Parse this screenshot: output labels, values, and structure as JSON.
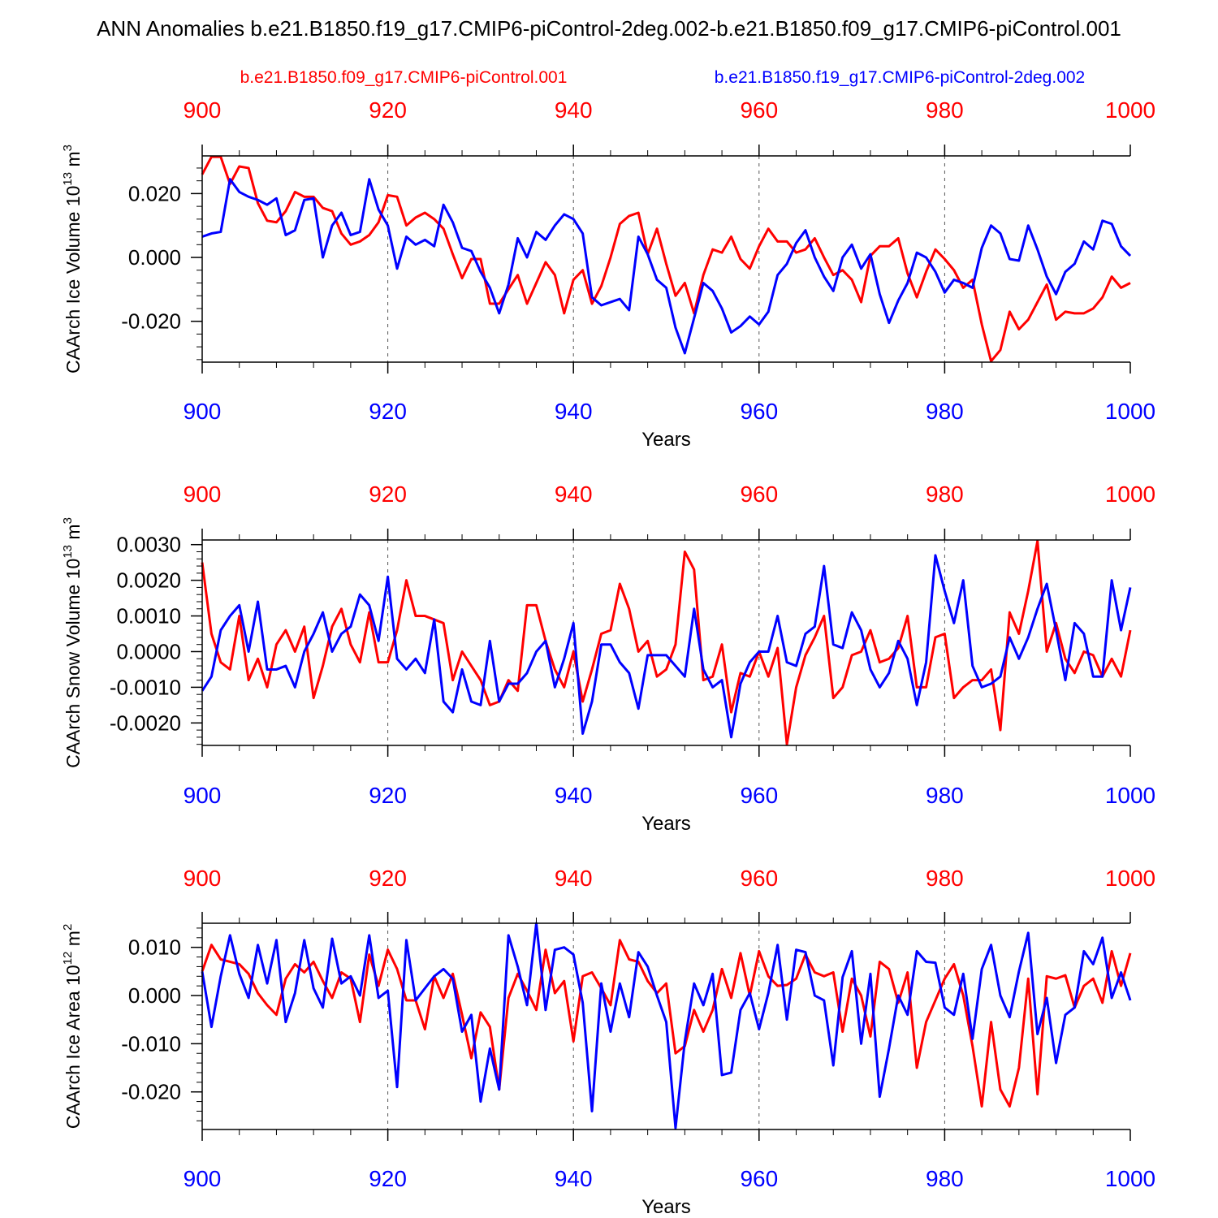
{
  "title": "ANN Anomalies b.e21.B1850.f19_g17.CMIP6-piControl-2deg.002-b.e21.B1850.f09_g17.CMIP6-piControl.001",
  "legend": {
    "red_label": "b.e21.B1850.f09_g17.CMIP6-piControl.001",
    "blue_label": "b.e21.B1850.f19_g17.CMIP6-piControl-2deg.002"
  },
  "colors": {
    "red": "#ff0000",
    "blue": "#0000ff",
    "axis": "#000000",
    "grid": "#555555"
  },
  "chart_data": [
    {
      "type": "line",
      "ylabel": "CAArch Ice Volume 10",
      "ylabel_exp": "13",
      "ylabel_unit": " m",
      "ylabel_unit_exp": "3",
      "xlabel": "Years",
      "xlim": [
        900,
        1000
      ],
      "ylim": [
        -0.0328,
        0.0318
      ],
      "yticks": [
        -0.02,
        0.0,
        0.02
      ],
      "ytick_labels": [
        "-0.020",
        "0.000",
        "0.020"
      ],
      "ytick_minor_step": 0.004,
      "xticks": [
        900,
        920,
        940,
        960,
        980,
        1000
      ],
      "xtick_labels": [
        "900",
        "920",
        "940",
        "960",
        "980",
        "1000"
      ],
      "series": [
        {
          "name": "b.e21.B1850.f09_g17.CMIP6-piControl.001",
          "color": "red",
          "values": [
            0.026,
            0.0315,
            0.0315,
            0.023,
            0.0285,
            0.028,
            0.017,
            0.0115,
            0.011,
            0.0145,
            0.0205,
            0.019,
            0.019,
            0.0155,
            0.0145,
            0.0075,
            0.004,
            0.005,
            0.007,
            0.011,
            0.0195,
            0.019,
            0.01,
            0.0125,
            0.014,
            0.012,
            0.009,
            0.001,
            -0.0065,
            -0.0005,
            -0.0005,
            -0.0145,
            -0.0145,
            -0.01,
            -0.0055,
            -0.0145,
            -0.008,
            -0.0015,
            -0.0055,
            -0.0175,
            -0.007,
            -0.004,
            -0.0145,
            -0.009,
            0.0,
            0.0105,
            0.013,
            0.014,
            0.001,
            0.009,
            -0.002,
            -0.012,
            -0.008,
            -0.0175,
            -0.0055,
            0.0025,
            0.0015,
            0.0065,
            -0.0005,
            -0.0035,
            0.0035,
            0.009,
            0.005,
            0.005,
            0.0015,
            0.0025,
            0.006,
            0.0,
            -0.0055,
            -0.004,
            -0.007,
            -0.014,
            0.0005,
            0.0035,
            0.0035,
            0.006,
            -0.005,
            -0.0125,
            -0.0045,
            0.0025,
            -0.0005,
            -0.004,
            -0.0095,
            -0.007,
            -0.021,
            -0.0325,
            -0.029,
            -0.017,
            -0.0225,
            -0.0195,
            -0.014,
            -0.0085,
            -0.0195,
            -0.017,
            -0.0175,
            -0.0175,
            -0.016,
            -0.0125,
            -0.006,
            -0.0095,
            -0.008
          ]
        },
        {
          "name": "b.e21.B1850.f19_g17.CMIP6-piControl-2deg.002",
          "color": "blue",
          "values": [
            0.0065,
            0.0075,
            0.008,
            0.0245,
            0.0205,
            0.019,
            0.018,
            0.0165,
            0.0185,
            0.007,
            0.0085,
            0.018,
            0.0185,
            0.0,
            0.01,
            0.014,
            0.007,
            0.008,
            0.0245,
            0.015,
            0.01,
            -0.0035,
            0.0065,
            0.004,
            0.0055,
            0.0035,
            0.0165,
            0.011,
            0.003,
            0.002,
            -0.0045,
            -0.0095,
            -0.0175,
            -0.0085,
            0.006,
            0.0,
            0.008,
            0.0055,
            0.01,
            0.0135,
            0.012,
            0.0075,
            -0.0125,
            -0.015,
            -0.014,
            -0.013,
            -0.0165,
            0.0065,
            0.001,
            -0.007,
            -0.0095,
            -0.022,
            -0.03,
            -0.019,
            -0.008,
            -0.0105,
            -0.016,
            -0.0235,
            -0.0215,
            -0.0185,
            -0.021,
            -0.017,
            -0.0055,
            -0.002,
            0.0045,
            0.0085,
            0.0,
            -0.006,
            -0.0105,
            0.0,
            0.004,
            -0.0035,
            0.001,
            -0.0115,
            -0.0205,
            -0.0135,
            -0.008,
            0.0015,
            0.0,
            -0.0045,
            -0.011,
            -0.007,
            -0.008,
            -0.0095,
            0.003,
            0.01,
            0.0075,
            -0.0005,
            -0.001,
            0.01,
            0.0025,
            -0.006,
            -0.0115,
            -0.0045,
            -0.002,
            0.005,
            0.0025,
            0.0115,
            0.0105,
            0.0035,
            0.0005
          ]
        }
      ]
    },
    {
      "type": "line",
      "ylabel": "CAArch Snow Volume 10",
      "ylabel_exp": "13",
      "ylabel_unit": " m",
      "ylabel_unit_exp": "3",
      "xlabel": "Years",
      "xlim": [
        900,
        1000
      ],
      "ylim": [
        -0.00263,
        0.00313
      ],
      "yticks": [
        -0.002,
        -0.001,
        0.0,
        0.001,
        0.002,
        0.003
      ],
      "ytick_labels": [
        "-0.0020",
        "-0.0010",
        "0.0000",
        "0.0010",
        "0.0020",
        "0.0030"
      ],
      "ytick_minor_step": 0.0002,
      "xticks": [
        900,
        920,
        940,
        960,
        980,
        1000
      ],
      "xtick_labels": [
        "900",
        "920",
        "940",
        "960",
        "980",
        "1000"
      ],
      "series": [
        {
          "name": "b.e21.B1850.f09_g17.CMIP6-piControl.001",
          "color": "red",
          "values": [
            0.0025,
            0.0005,
            -0.0003,
            -0.0005,
            0.001,
            -0.0008,
            -0.0002,
            -0.001,
            0.0002,
            0.0006,
            0.0,
            0.0007,
            -0.0013,
            -0.0004,
            0.0007,
            0.0012,
            0.0002,
            -0.0003,
            0.0011,
            -0.0003,
            -0.0003,
            0.0006,
            0.002,
            0.001,
            0.001,
            0.0009,
            0.0008,
            -0.0008,
            0.0,
            -0.0004,
            -0.0008,
            -0.0015,
            -0.0014,
            -0.0008,
            -0.0011,
            0.0013,
            0.0013,
            0.0003,
            -0.0005,
            -0.001,
            0.0,
            -0.0014,
            -0.0005,
            0.0005,
            0.0006,
            0.0019,
            0.0012,
            0.0,
            0.0003,
            -0.0007,
            -0.0005,
            0.0002,
            0.0028,
            0.0023,
            -0.0008,
            -0.0007,
            0.0002,
            -0.0017,
            -0.0006,
            -0.0007,
            0.0,
            -0.0007,
            0.0001,
            -0.0026,
            -0.001,
            -0.0001,
            0.0004,
            0.001,
            -0.0013,
            -0.001,
            -0.0001,
            0.0,
            0.0006,
            -0.0003,
            -0.0002,
            0.0001,
            0.001,
            -0.001,
            -0.001,
            0.0004,
            0.0005,
            -0.0013,
            -0.001,
            -0.0008,
            -0.0008,
            -0.0005,
            -0.0022,
            0.0011,
            0.0005,
            0.0017,
            0.0031,
            0.0,
            0.0008,
            -0.0002,
            -0.0006,
            0.0,
            -0.0001,
            -0.0007,
            -0.0002,
            -0.0007,
            0.0006
          ]
        },
        {
          "name": "b.e21.B1850.f19_g17.CMIP6-piControl-2deg.002",
          "color": "blue",
          "values": [
            -0.0011,
            -0.0007,
            0.0006,
            0.001,
            0.0013,
            0.0,
            0.0014,
            -0.0005,
            -0.0005,
            -0.0004,
            -0.001,
            0.0,
            0.0005,
            0.0011,
            0.0,
            0.0005,
            0.0007,
            0.0016,
            0.0013,
            0.0003,
            0.0021,
            -0.0002,
            -0.0005,
            -0.0002,
            -0.0006,
            0.0009,
            -0.0014,
            -0.0017,
            -0.0005,
            -0.0014,
            -0.0015,
            0.0003,
            -0.0014,
            -0.0009,
            -0.0009,
            -0.0006,
            0.0,
            0.0003,
            -0.001,
            -0.0002,
            0.0008,
            -0.0023,
            -0.0014,
            0.0002,
            0.0002,
            -0.0003,
            -0.0006,
            -0.0016,
            -0.0001,
            -0.0001,
            -0.0001,
            -0.0004,
            -0.0007,
            0.0012,
            -0.0005,
            -0.001,
            -0.0008,
            -0.0024,
            -0.0009,
            -0.0003,
            0.0,
            0.0,
            0.001,
            -0.0003,
            -0.0004,
            0.0005,
            0.0007,
            0.0024,
            0.0002,
            0.0001,
            0.0011,
            0.0006,
            -0.0005,
            -0.001,
            -0.0006,
            0.0003,
            -0.0002,
            -0.0015,
            -0.0003,
            0.0027,
            0.0017,
            0.0008,
            0.002,
            -0.0004,
            -0.001,
            -0.0009,
            -0.0007,
            0.0004,
            -0.0002,
            0.0004,
            0.0012,
            0.0019,
            0.0006,
            -0.0008,
            0.0008,
            0.0005,
            -0.0007,
            -0.0007,
            0.002,
            0.0006,
            0.0018
          ]
        }
      ]
    },
    {
      "type": "line",
      "ylabel": "CAArch Ice Area 10",
      "ylabel_exp": "12",
      "ylabel_unit": " m",
      "ylabel_unit_exp": "2",
      "xlabel": "Years",
      "xlim": [
        900,
        1000
      ],
      "ylim": [
        -0.0278,
        0.015
      ],
      "yticks": [
        -0.02,
        -0.01,
        0.0,
        0.01
      ],
      "ytick_labels": [
        "-0.020",
        "-0.010",
        "0.000",
        "0.010"
      ],
      "ytick_minor_step": 0.002,
      "xticks": [
        900,
        920,
        940,
        960,
        980,
        1000
      ],
      "xtick_labels": [
        "900",
        "920",
        "940",
        "960",
        "980",
        "1000"
      ],
      "series": [
        {
          "name": "b.e21.B1850.f09_g17.CMIP6-piControl.001",
          "color": "red",
          "values": [
            0.005,
            0.0105,
            0.0075,
            0.007,
            0.0065,
            0.0045,
            0.0005,
            -0.002,
            -0.004,
            0.0035,
            0.0065,
            0.0048,
            0.007,
            0.003,
            -0.0005,
            0.0048,
            0.0035,
            -0.0055,
            0.0085,
            0.002,
            0.0095,
            0.0055,
            -0.001,
            -0.001,
            -0.007,
            0.004,
            -0.0005,
            0.0045,
            -0.004,
            -0.013,
            -0.0035,
            -0.0065,
            -0.0195,
            -0.0005,
            0.0045,
            0.001,
            -0.003,
            0.0095,
            0.0005,
            0.003,
            -0.0095,
            0.004,
            0.0048,
            0.0015,
            -0.002,
            0.0115,
            0.0075,
            0.007,
            0.003,
            0.0005,
            0.0025,
            -0.012,
            -0.0105,
            -0.003,
            -0.0075,
            -0.003,
            0.0055,
            -0.0005,
            0.0088,
            0.0,
            0.0092,
            0.004,
            0.002,
            0.0022,
            0.0035,
            0.0085,
            0.0048,
            0.004,
            0.0048,
            -0.0075,
            0.0035,
            0.0,
            -0.0085,
            0.007,
            0.0055,
            -0.0015,
            0.0048,
            -0.015,
            -0.0055,
            -0.001,
            0.0035,
            0.0065,
            0.0,
            -0.0105,
            -0.023,
            -0.0055,
            -0.0195,
            -0.023,
            -0.015,
            0.0035,
            -0.0205,
            0.004,
            0.0035,
            0.0042,
            -0.0025,
            0.002,
            0.0035,
            -0.0015,
            0.0092,
            0.002,
            0.0088
          ]
        },
        {
          "name": "b.e21.B1850.f19_g17.CMIP6-piControl-2deg.002",
          "color": "blue",
          "values": [
            0.005,
            -0.0065,
            0.004,
            0.0125,
            0.0045,
            -0.0005,
            0.0105,
            0.0025,
            0.0115,
            -0.0055,
            0.0005,
            0.0115,
            0.0015,
            -0.0025,
            0.0118,
            0.0025,
            0.004,
            0.0,
            0.0125,
            -0.0005,
            0.001,
            -0.019,
            0.0115,
            -0.001,
            0.0015,
            0.004,
            0.0055,
            0.0035,
            -0.0075,
            -0.004,
            -0.022,
            -0.011,
            -0.0195,
            0.0125,
            0.006,
            -0.002,
            0.015,
            -0.003,
            0.0095,
            0.01,
            0.0085,
            -0.0015,
            -0.024,
            0.0025,
            -0.0075,
            0.0025,
            -0.0045,
            0.009,
            0.006,
            0.0,
            -0.0055,
            -0.0275,
            -0.0095,
            0.0025,
            -0.002,
            0.0045,
            -0.0165,
            -0.016,
            -0.003,
            0.0005,
            -0.007,
            0.0005,
            0.0105,
            -0.005,
            0.0095,
            0.009,
            0.0,
            -0.001,
            -0.0145,
            0.0038,
            0.0092,
            -0.01,
            0.0045,
            -0.021,
            -0.011,
            0.0,
            -0.004,
            0.0092,
            0.007,
            0.0068,
            -0.0025,
            -0.004,
            0.0045,
            -0.009,
            0.0055,
            0.0105,
            0.0,
            -0.0045,
            0.005,
            0.013,
            -0.008,
            -0.0005,
            -0.014,
            -0.004,
            -0.0025,
            0.0092,
            0.0065,
            0.012,
            -0.0005,
            0.0048,
            -0.001
          ]
        }
      ]
    }
  ]
}
